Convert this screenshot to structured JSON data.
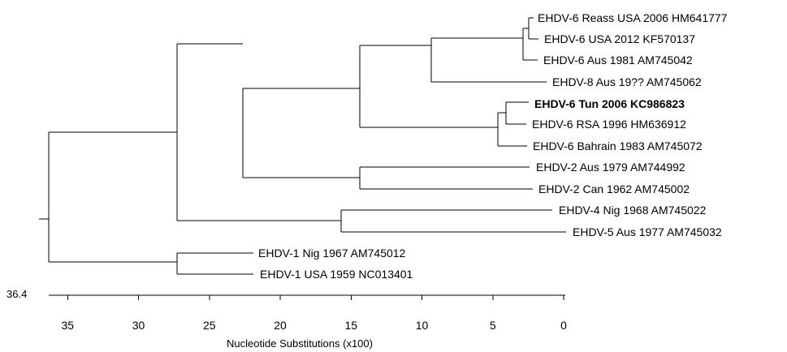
{
  "tree": {
    "scale_max_label": "36.4",
    "leaves": [
      {
        "id": "l1",
        "label": "EHDV-6 Reass USA 2006 HM641777",
        "bold": false
      },
      {
        "id": "l2",
        "label": "EHDV-6 USA 2012 KF570137",
        "bold": false
      },
      {
        "id": "l3",
        "label": "EHDV-6  Aus 1981 AM745042",
        "bold": false
      },
      {
        "id": "l4",
        "label": "EHDV-8 Aus 19?? AM745062",
        "bold": false
      },
      {
        "id": "l5",
        "label": "EHDV-6  Tun  2006 KC986823",
        "bold": true
      },
      {
        "id": "l6",
        "label": "EHDV-6 RSA 1996 HM636912",
        "bold": false
      },
      {
        "id": "l7",
        "label": "EHDV-6 Bahrain 1983 AM745072",
        "bold": false
      },
      {
        "id": "l8",
        "label": "EHDV-2 Aus 1979 AM744992",
        "bold": false
      },
      {
        "id": "l9",
        "label": "EHDV-2 Can 1962 AM745002",
        "bold": false
      },
      {
        "id": "l10",
        "label": "EHDV-4 Nig 1968 AM745022",
        "bold": false
      },
      {
        "id": "l11",
        "label": "EHDV-5 Aus 1977 AM745032",
        "bold": false
      },
      {
        "id": "l12",
        "label": "EHDV-1 Nig 1967 AM745012",
        "bold": false
      },
      {
        "id": "l13",
        "label": "EHDV-1 USA 1959 NC013401",
        "bold": false
      }
    ]
  },
  "axis": {
    "title": "Nucleotide Substitutions (x100)",
    "ticks": [
      35,
      30,
      25,
      20,
      15,
      10,
      5,
      0
    ],
    "tick_labels": [
      "35",
      "30",
      "25",
      "20",
      "15",
      "10",
      "5",
      "0"
    ],
    "range": [
      36.4,
      0
    ]
  }
}
